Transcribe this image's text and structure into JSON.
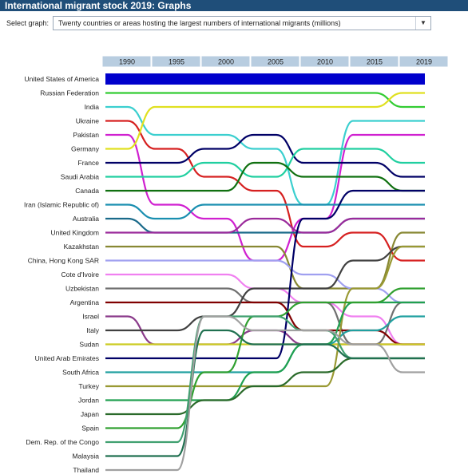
{
  "title": "International migrant stock 2019: Graphs",
  "selector": {
    "label": "Select graph:",
    "value": "Twenty countries or areas hosting the largest numbers of international migrants (millions)"
  },
  "chart_data": {
    "type": "bump",
    "years": [
      "1990",
      "1995",
      "2000",
      "2005",
      "2010",
      "2015",
      "2019"
    ],
    "countries": [
      {
        "name": "United States of America",
        "color": "#0000cc",
        "ranks": [
          1,
          1,
          1,
          1,
          1,
          1,
          1
        ]
      },
      {
        "name": "Russian Federation",
        "color": "#33cc33",
        "ranks": [
          2,
          2,
          2,
          2,
          2,
          2,
          3
        ]
      },
      {
        "name": "India",
        "color": "#3bcfcf",
        "ranks": [
          3,
          5,
          5,
          6,
          10,
          4,
          4
        ]
      },
      {
        "name": "Ukraine",
        "color": "#d62020",
        "ranks": [
          4,
          6,
          8,
          9,
          13,
          12,
          14
        ]
      },
      {
        "name": "Pakistan",
        "color": "#d020d0",
        "ranks": [
          5,
          10,
          11,
          14,
          11,
          5,
          5
        ]
      },
      {
        "name": "Germany",
        "color": "#e0e020",
        "ranks": [
          6,
          3,
          3,
          3,
          3,
          3,
          2
        ]
      },
      {
        "name": "France",
        "color": "#000066",
        "ranks": [
          7,
          7,
          6,
          5,
          7,
          7,
          8
        ]
      },
      {
        "name": "Saudi Arabia",
        "color": "#20cfa0",
        "ranks": [
          8,
          8,
          7,
          8,
          6,
          6,
          7
        ]
      },
      {
        "name": "Canada",
        "color": "#107010",
        "ranks": [
          9,
          9,
          9,
          7,
          8,
          8,
          9
        ]
      },
      {
        "name": "Iran (Islamic Republic of)",
        "color": "#1a8fb0",
        "ranks": [
          10,
          11,
          10,
          10,
          10,
          10,
          10
        ]
      },
      {
        "name": "Australia",
        "color": "#1a6a8a",
        "ranks": [
          11,
          12,
          12,
          12,
          12,
          11,
          11
        ]
      },
      {
        "name": "United Kingdom",
        "color": "#9b2a9b",
        "ranks": [
          12,
          12,
          12,
          11,
          12,
          11,
          11
        ]
      },
      {
        "name": "Kazakhstan",
        "color": "#888833",
        "ranks": [
          13,
          13,
          13,
          13,
          16,
          16,
          12
        ]
      },
      {
        "name": "China, Hong Kong SAR",
        "color": "#a0a0f0",
        "ranks": [
          14,
          14,
          14,
          14,
          15,
          16,
          17
        ]
      },
      {
        "name": "Cote d'Ivoire",
        "color": "#f080f0",
        "ranks": [
          15,
          15,
          15,
          16,
          17,
          18,
          20
        ]
      },
      {
        "name": "Uzbekistan",
        "color": "#707070",
        "ranks": [
          16,
          16,
          16,
          17,
          17,
          20,
          17
        ]
      },
      {
        "name": "Argentina",
        "color": "#800000",
        "ranks": [
          17,
          17,
          17,
          17,
          19,
          19,
          20
        ]
      },
      {
        "name": "Israel",
        "color": "#8a3a8a",
        "ranks": [
          18,
          20,
          20,
          19,
          20,
          20,
          20
        ]
      },
      {
        "name": "Italy",
        "color": "#404040",
        "ranks": [
          19,
          19,
          18,
          16,
          16,
          14,
          13
        ]
      },
      {
        "name": "Sudan",
        "color": "#cccc22",
        "ranks": [
          20,
          20,
          20,
          20,
          20,
          20,
          20
        ]
      },
      {
        "name": "United Arab Emirates",
        "color": "#000066",
        "ranks": [
          21,
          21,
          21,
          21,
          11,
          9,
          9
        ]
      },
      {
        "name": "South Africa",
        "color": "#20a0a0",
        "ranks": [
          22,
          22,
          22,
          22,
          20,
          19,
          18
        ]
      },
      {
        "name": "Turkey",
        "color": "#999933",
        "ranks": [
          23,
          23,
          23,
          23,
          23,
          16,
          13
        ]
      },
      {
        "name": "Jordan",
        "color": "#20a050",
        "ranks": [
          24,
          24,
          24,
          22,
          20,
          17,
          17
        ]
      },
      {
        "name": "Japan",
        "color": "#2a6a2a",
        "ranks": [
          25,
          25,
          24,
          23,
          22,
          21,
          21
        ]
      },
      {
        "name": "Spain",
        "color": "#30a030",
        "ranks": [
          26,
          26,
          22,
          18,
          17,
          17,
          16
        ]
      },
      {
        "name": "Dem. Rep. of the Congo",
        "color": "#40a070",
        "ranks": [
          27,
          27,
          18,
          18,
          19,
          21,
          21
        ]
      },
      {
        "name": "Malaysia",
        "color": "#207050",
        "ranks": [
          28,
          28,
          19,
          20,
          20,
          21,
          21
        ]
      },
      {
        "name": "Thailand",
        "color": "#a0a0a0",
        "ranks": [
          29,
          29,
          18,
          19,
          19,
          20,
          22
        ]
      }
    ]
  }
}
